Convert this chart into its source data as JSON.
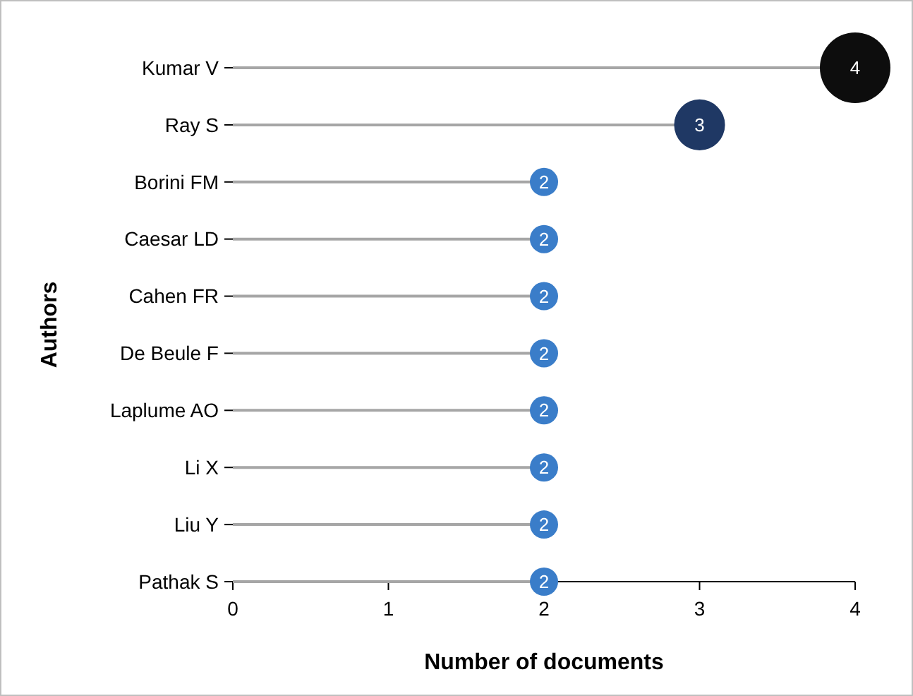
{
  "chart_data": {
    "type": "lollipop",
    "orientation": "horizontal",
    "xlabel": "Number of documents",
    "ylabel": "Authors",
    "categories": [
      "Kumar V",
      "Ray S",
      "Borini FM",
      "Caesar LD",
      "Cahen FR",
      "De Beule F",
      "Laplume AO",
      "Li X",
      "Liu Y",
      "Pathak S"
    ],
    "values": [
      4,
      3,
      2,
      2,
      2,
      2,
      2,
      2,
      2,
      2
    ],
    "sizes": [
      1,
      0.52,
      0.16,
      0.16,
      0.16,
      0.16,
      0.16,
      0.16,
      0.16,
      0.16
    ],
    "colors": [
      "#0d0d0d",
      "#1f3864",
      "#3a7dc9",
      "#3a7dc9",
      "#3a7dc9",
      "#3a7dc9",
      "#3a7dc9",
      "#3a7dc9",
      "#3a7dc9",
      "#3a7dc9"
    ],
    "xlim": [
      0,
      4
    ],
    "xticks": [
      0,
      1,
      2,
      3,
      4
    ],
    "data_labels": true,
    "grid": false
  }
}
